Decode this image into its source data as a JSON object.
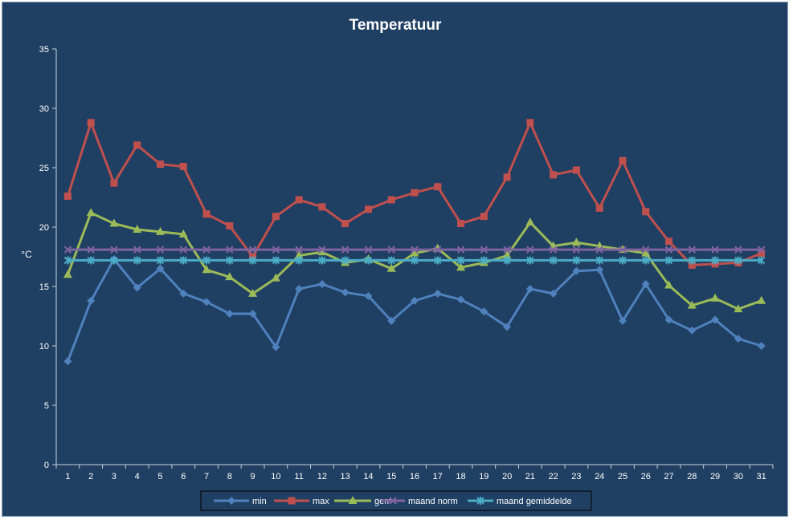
{
  "chart_data": {
    "type": "line",
    "title": "Temperatuur",
    "xlabel": "",
    "ylabel": "°C",
    "ylim": [
      0,
      35
    ],
    "yticks": [
      0,
      5,
      10,
      15,
      20,
      25,
      30,
      35
    ],
    "x": [
      1,
      2,
      3,
      4,
      5,
      6,
      7,
      8,
      9,
      10,
      11,
      12,
      13,
      14,
      15,
      16,
      17,
      18,
      19,
      20,
      21,
      22,
      23,
      24,
      25,
      26,
      27,
      28,
      29,
      30,
      31
    ],
    "grid": false,
    "legend_position": "bottom",
    "series": [
      {
        "name": "min",
        "color": "#4f81bd",
        "marker": "diamond",
        "values": [
          8.7,
          13.8,
          17.3,
          14.9,
          16.5,
          14.4,
          13.7,
          12.7,
          12.7,
          9.9,
          14.8,
          15.2,
          14.5,
          14.2,
          12.1,
          13.8,
          14.4,
          13.9,
          12.9,
          11.6,
          14.8,
          14.4,
          16.3,
          16.4,
          12.1,
          15.2,
          12.2,
          11.3,
          12.2,
          10.6,
          10.0
        ]
      },
      {
        "name": "max",
        "color": "#c0504d",
        "marker": "square",
        "values": [
          22.6,
          28.8,
          23.7,
          26.9,
          25.3,
          25.1,
          21.1,
          20.1,
          17.5,
          20.9,
          22.3,
          21.7,
          20.3,
          21.5,
          22.3,
          22.9,
          23.4,
          20.3,
          20.9,
          24.2,
          28.8,
          24.4,
          24.8,
          21.6,
          25.6,
          21.3,
          18.8,
          16.8,
          16.9,
          17.0,
          17.8
        ]
      },
      {
        "name": "gem",
        "color": "#9bbb59",
        "marker": "triangle",
        "values": [
          16.0,
          21.2,
          20.3,
          19.8,
          19.6,
          19.4,
          16.4,
          15.8,
          14.4,
          15.7,
          17.6,
          17.9,
          17.0,
          17.3,
          16.5,
          17.8,
          18.2,
          16.6,
          17.0,
          17.6,
          20.4,
          18.4,
          18.7,
          18.4,
          18.1,
          17.8,
          15.1,
          13.4,
          14.0,
          13.1,
          13.8
        ]
      },
      {
        "name": "maand norm",
        "color": "#8064a2",
        "marker": "x",
        "values": [
          18.1,
          18.1,
          18.1,
          18.1,
          18.1,
          18.1,
          18.1,
          18.1,
          18.1,
          18.1,
          18.1,
          18.1,
          18.1,
          18.1,
          18.1,
          18.1,
          18.1,
          18.1,
          18.1,
          18.1,
          18.1,
          18.1,
          18.1,
          18.1,
          18.1,
          18.1,
          18.1,
          18.1,
          18.1,
          18.1,
          18.1
        ]
      },
      {
        "name": "maand gemiddelde",
        "color": "#4bacc6",
        "marker": "star",
        "values": [
          17.2,
          17.2,
          17.2,
          17.2,
          17.2,
          17.2,
          17.2,
          17.2,
          17.2,
          17.2,
          17.2,
          17.2,
          17.2,
          17.2,
          17.2,
          17.2,
          17.2,
          17.2,
          17.2,
          17.2,
          17.2,
          17.2,
          17.2,
          17.2,
          17.2,
          17.2,
          17.2,
          17.2,
          17.2,
          17.2,
          17.2
        ]
      }
    ]
  }
}
